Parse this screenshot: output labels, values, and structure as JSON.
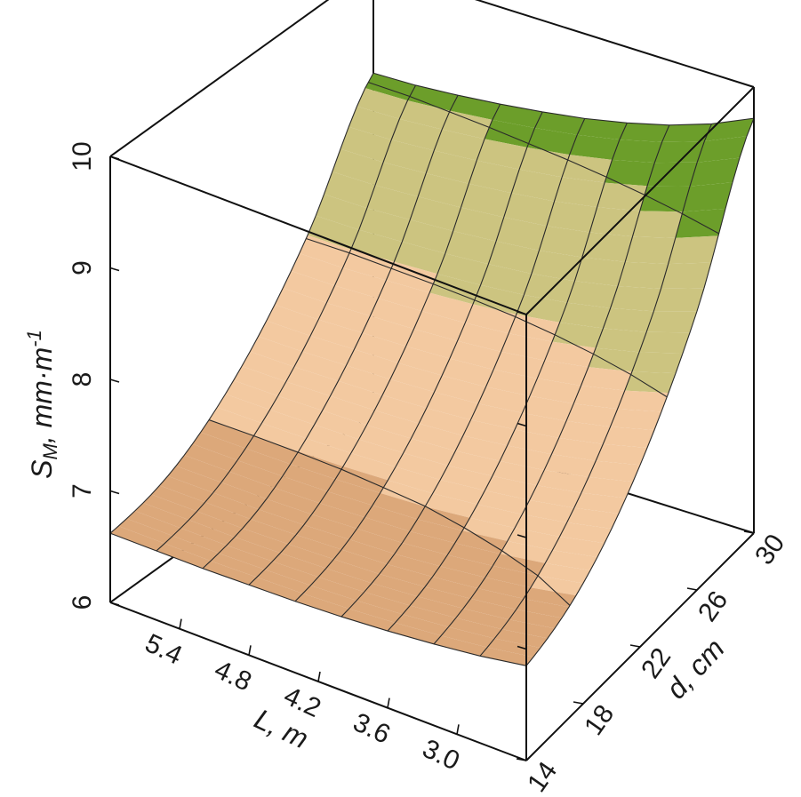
{
  "chart_data": {
    "type": "surface",
    "z_label_main": "S",
    "z_label_sub": "M",
    "z_label_rest": ", mm·m",
    "z_label_sup": "-1",
    "x_label": "L, m",
    "y_label": "d, cm",
    "z_ticks": [
      "6",
      "7",
      "8",
      "9",
      "10"
    ],
    "x_ticks": [
      "5.4",
      "4.8",
      "4.2",
      "3.6",
      "3.0"
    ],
    "y_ticks": [
      "14",
      "18",
      "22",
      "26",
      "30"
    ],
    "x_range": [
      6.0,
      2.4
    ],
    "y_range": [
      14,
      30
    ],
    "zlim": [
      6,
      10
    ],
    "surface": {
      "L": [
        6.0,
        5.6,
        5.2,
        4.8,
        4.4,
        4.0,
        3.6,
        3.2,
        2.8,
        2.4
      ],
      "d": [
        14,
        18,
        22,
        26,
        30
      ],
      "S": [
        [
          6.62,
          6.8,
          7.27,
          8.02,
          9.05
        ],
        [
          6.62,
          6.8,
          7.27,
          8.02,
          9.06
        ],
        [
          6.62,
          6.8,
          7.28,
          8.04,
          9.09
        ],
        [
          6.63,
          6.81,
          7.29,
          8.06,
          9.13
        ],
        [
          6.64,
          6.83,
          7.31,
          8.09,
          9.18
        ],
        [
          6.66,
          6.85,
          7.34,
          8.13,
          9.24
        ],
        [
          6.69,
          6.89,
          7.39,
          8.19,
          9.32
        ],
        [
          6.73,
          6.94,
          7.45,
          8.27,
          9.42
        ],
        [
          6.78,
          7.0,
          7.53,
          8.37,
          9.55
        ],
        [
          6.85,
          7.08,
          7.63,
          8.5,
          9.72
        ]
      ]
    },
    "color_bands": [
      {
        "from": 6,
        "to": 7,
        "color": "#dca87a"
      },
      {
        "from": 7,
        "to": 8,
        "color": "#f3c9a0"
      },
      {
        "from": 8,
        "to": 9,
        "color": "#ccc480"
      },
      {
        "from": 9,
        "to": 10,
        "color": "#6c9e2a"
      }
    ],
    "grid": false
  }
}
